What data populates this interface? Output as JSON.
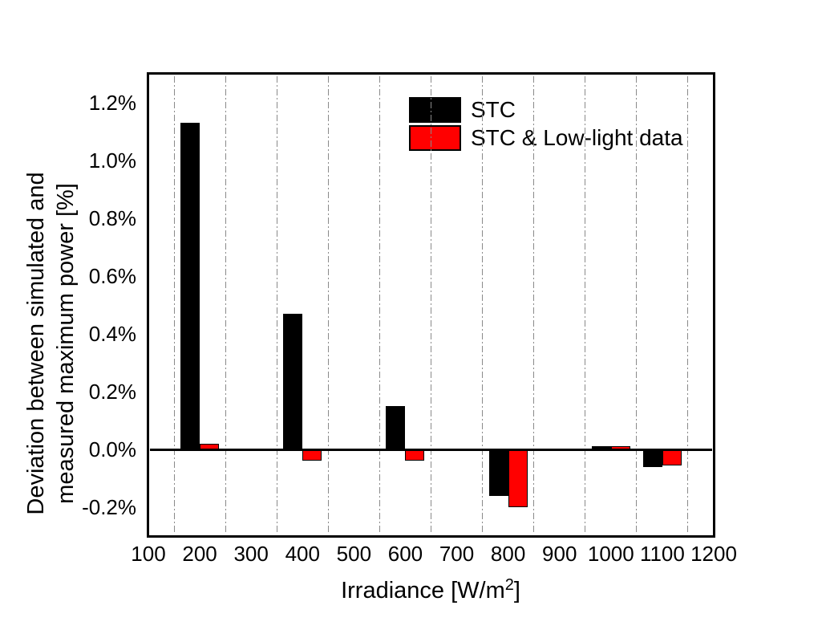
{
  "chart_data": {
    "type": "bar",
    "title": "",
    "xlabel": "Irradiance [W/m²]",
    "xlabel_parts": {
      "pre": "Irradiance [W/m",
      "sup": "2",
      "post": "]"
    },
    "ylabel": "Deviation between simulated and measured maximum power [%]",
    "ylabel_lines": [
      "Deviation between simulated and",
      "measured maximum power [%]"
    ],
    "categories": [
      200,
      400,
      600,
      800,
      1000,
      1100
    ],
    "series": [
      {
        "name": "STC",
        "color": "#000000",
        "values": [
          1.13,
          0.47,
          0.15,
          -0.16,
          0.01,
          -0.06
        ]
      },
      {
        "name": "STC & Low-light data",
        "color": "#ff0000",
        "values": [
          0.02,
          -0.04,
          -0.04,
          -0.2,
          0.01,
          -0.055
        ]
      }
    ],
    "xlim": [
      100,
      1200
    ],
    "ylim": [
      -0.3,
      1.3
    ],
    "x_ticks": [
      {
        "v": 100,
        "label": "100"
      },
      {
        "v": 200,
        "label": "200"
      },
      {
        "v": 300,
        "label": "300"
      },
      {
        "v": 400,
        "label": "400"
      },
      {
        "v": 500,
        "label": "500"
      },
      {
        "v": 600,
        "label": "600"
      },
      {
        "v": 700,
        "label": "700"
      },
      {
        "v": 800,
        "label": "800"
      },
      {
        "v": 900,
        "label": "900"
      },
      {
        "v": 1000,
        "label": "1000"
      },
      {
        "v": 1100,
        "label": "1100"
      },
      {
        "v": 1200,
        "label": "1200"
      }
    ],
    "y_ticks": [
      {
        "v": 1.2,
        "label": "1.2%"
      },
      {
        "v": 1.0,
        "label": "1.0%"
      },
      {
        "v": 0.8,
        "label": "0.8%"
      },
      {
        "v": 0.6,
        "label": "0.6%"
      },
      {
        "v": 0.4,
        "label": "0.4%"
      },
      {
        "v": 0.2,
        "label": "0.2%"
      },
      {
        "v": 0.0,
        "label": "0.0%"
      },
      {
        "v": -0.2,
        "label": "-0.2%"
      }
    ],
    "grid": {
      "vertical": true,
      "positions": [
        150,
        250,
        350,
        450,
        550,
        650,
        750,
        850,
        950,
        1050,
        1150
      ],
      "style": "dash-dot",
      "color": "#8a8a8a"
    },
    "legend": {
      "position": "top-right-inside",
      "entries": [
        "STC",
        "STC & Low-light data"
      ]
    },
    "zero_line": true,
    "bar_outline_color": "#000000"
  }
}
